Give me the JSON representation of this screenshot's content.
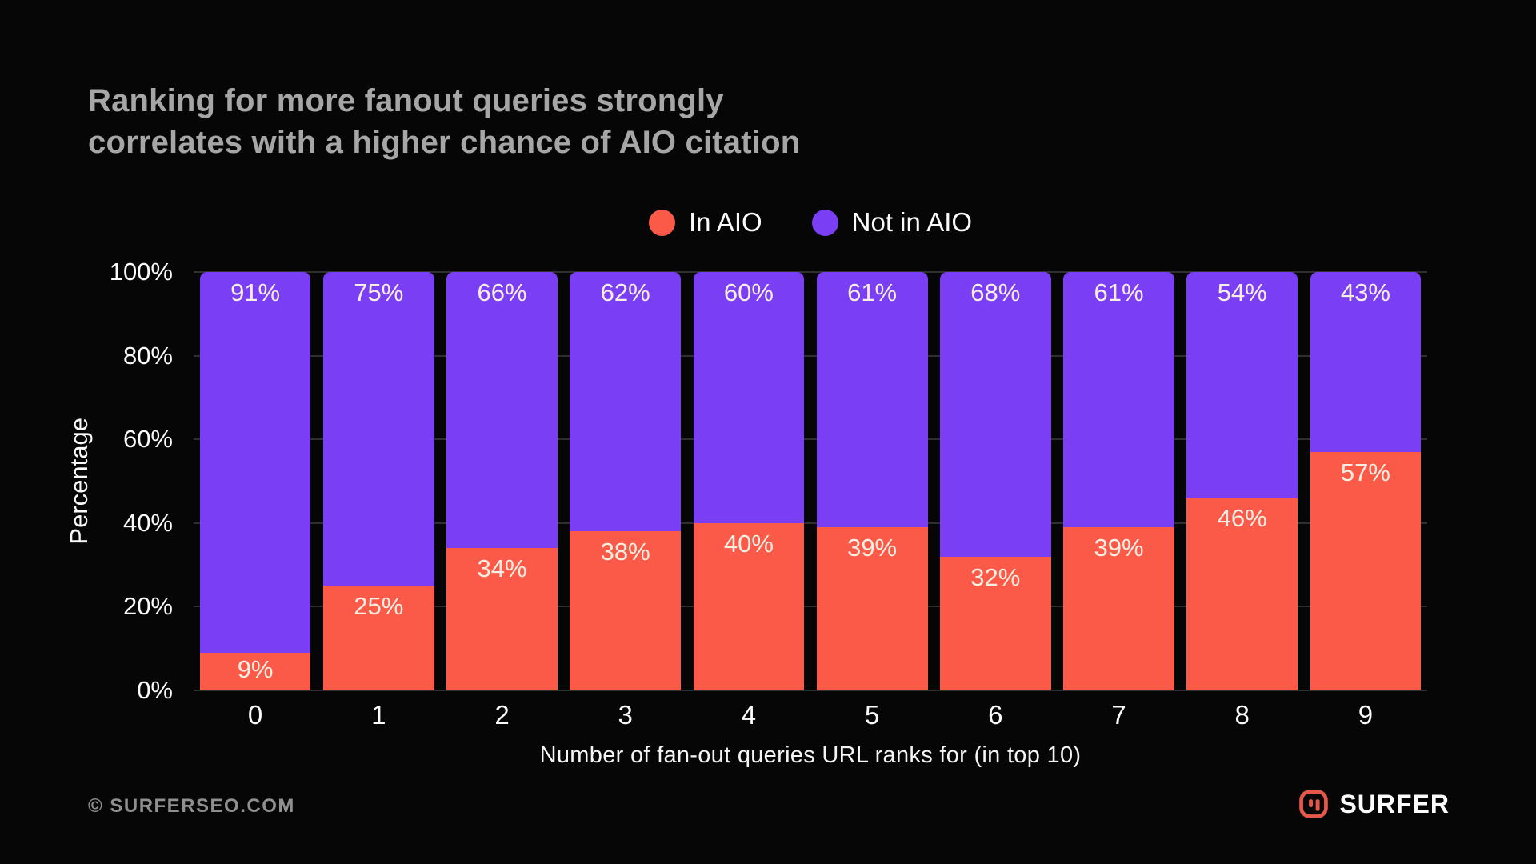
{
  "title": {
    "line1": "Ranking for more fanout queries strongly",
    "line2": "correlates with a higher chance of AIO citation"
  },
  "legend": [
    {
      "label": "In AIO",
      "color": "#fb5a49"
    },
    {
      "label": "Not in AIO",
      "color": "#7a3ef4"
    }
  ],
  "chart_data": {
    "type": "bar",
    "stacked": true,
    "stacked_to_100_percent": true,
    "categories": [
      "0",
      "1",
      "2",
      "3",
      "4",
      "5",
      "6",
      "7",
      "8",
      "9"
    ],
    "series": [
      {
        "name": "In AIO",
        "color": "#fb5a49",
        "values": [
          9,
          25,
          34,
          38,
          40,
          39,
          32,
          39,
          46,
          57
        ]
      },
      {
        "name": "Not in AIO",
        "color": "#7a3ef4",
        "values": [
          91,
          75,
          66,
          62,
          60,
          61,
          68,
          61,
          54,
          43
        ]
      }
    ],
    "data_label_suffix": "%",
    "xlabel": "Number of fan-out queries URL ranks for (in top 10)",
    "ylabel": "Percentage",
    "yticks": [
      "0%",
      "20%",
      "40%",
      "60%",
      "80%",
      "100%"
    ],
    "ytick_values": [
      0,
      20,
      40,
      60,
      80,
      100
    ],
    "ylim": [
      0,
      100
    ],
    "grid": true,
    "legend_position": "top"
  },
  "footer": {
    "copyright": "© SURFERSEO.COM",
    "brand": "SURFER"
  },
  "colors": {
    "background": "#060606",
    "title_text": "#a6a6a6",
    "axis_text": "#fafafa",
    "bar_label_text": "#f7efe4",
    "gridline": "#2f2f2f",
    "in_aio": "#fb5a49",
    "not_in_aio": "#7a3ef4",
    "brand_icon": "#e4584c"
  }
}
